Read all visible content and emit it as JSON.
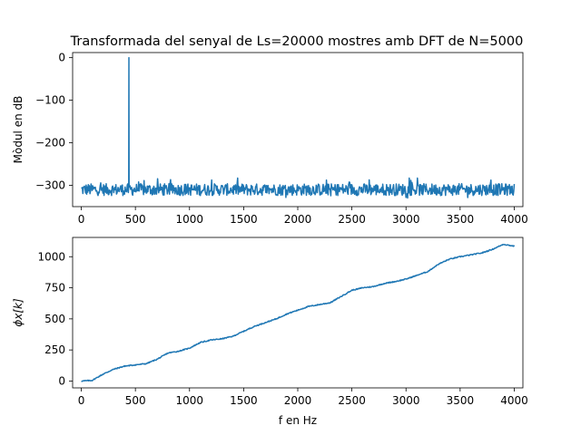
{
  "title": "Transformada del senyal de Ls=20000 mostres amb DFT de N=5000",
  "line_color": "#1f77b4",
  "chart_data": [
    {
      "type": "line",
      "title": "Transformada del senyal de Ls=20000 mostres amb DFT de N=5000",
      "xlabel": "",
      "ylabel": "Mòdul en dB",
      "xlim": [
        -80,
        4080
      ],
      "ylim": [
        -350,
        12
      ],
      "xticks": [
        0,
        500,
        1000,
        1500,
        2000,
        2500,
        3000,
        3500,
        4000
      ],
      "yticks": [
        0,
        -100,
        -200,
        -300
      ],
      "grid": false,
      "noise_floor_db": [
        -340,
        -283
      ],
      "peak": {
        "x": 440,
        "y": 0
      }
    },
    {
      "type": "line",
      "title": "",
      "xlabel": "f en Hz",
      "ylabel": "ϕx[k]",
      "xlim": [
        -80,
        4080
      ],
      "ylim": [
        -55,
        1155
      ],
      "xticks": [
        0,
        500,
        1000,
        1500,
        2000,
        2500,
        3000,
        3500,
        4000
      ],
      "yticks": [
        0,
        250,
        500,
        750,
        1000
      ],
      "grid": false,
      "x": [
        0,
        100,
        200,
        300,
        400,
        500,
        600,
        700,
        800,
        900,
        1000,
        1100,
        1200,
        1300,
        1400,
        1500,
        1600,
        1700,
        1800,
        1900,
        2000,
        2100,
        2200,
        2300,
        2400,
        2500,
        2600,
        2700,
        2800,
        2900,
        3000,
        3100,
        3200,
        3300,
        3400,
        3500,
        3600,
        3700,
        3800,
        3900,
        4000
      ],
      "y": [
        0,
        5,
        55,
        95,
        120,
        130,
        140,
        175,
        225,
        240,
        265,
        310,
        330,
        340,
        360,
        400,
        440,
        470,
        500,
        540,
        570,
        600,
        615,
        630,
        680,
        730,
        750,
        760,
        785,
        800,
        820,
        850,
        880,
        940,
        980,
        1000,
        1015,
        1030,
        1060,
        1100,
        1085
      ]
    }
  ]
}
